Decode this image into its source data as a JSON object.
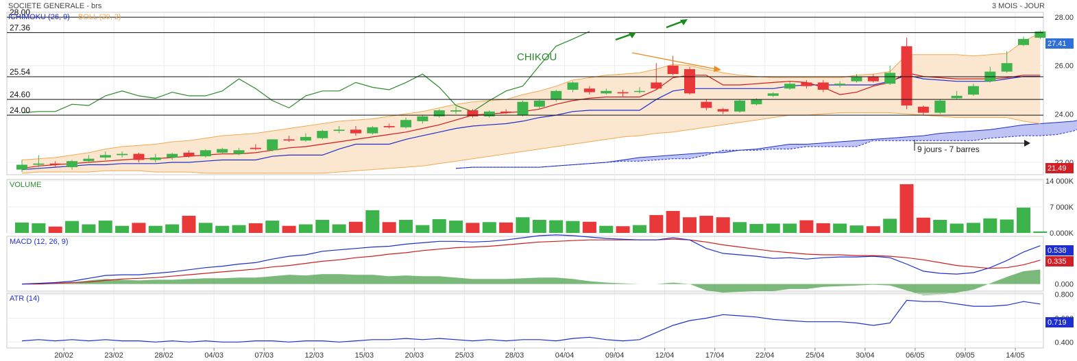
{
  "header": {
    "title": "SOCIETE GENERALE - brs",
    "period": "3 MOIS - JOUR"
  },
  "indicators": {
    "ichimoku_label": "ICHIMOKU (26, 9)",
    "boll_label": "BOLL (20, 2)",
    "chikou_label": "CHIKOU",
    "annotation": "9 jours - 7 barres"
  },
  "colors": {
    "up": "#3cb44b",
    "down": "#e8383a",
    "ichimoku_blue": "#1f2ecf",
    "tenkan_red": "#d01c1c",
    "chikou_green": "#2a8a2a",
    "boll_orange": "#f4a850",
    "boll_fill": "#fbe6cf",
    "cloud": "#aab0f0",
    "arrow_orange": "#f08a1c",
    "arrow_green": "#1a8a1a",
    "last_price_bg": "#2f6fd8",
    "low_price_bg": "#d21f26",
    "macd_badge": "#1f2ecf",
    "signal_badge": "#d21f26",
    "atr_badge": "#1f2ecf"
  },
  "levels": [
    {
      "label": "28.00",
      "value": 28.0
    },
    {
      "label": "27.36",
      "value": 27.36
    },
    {
      "label": "25.54",
      "value": 25.54
    },
    {
      "label": "24.60",
      "value": 24.6
    },
    {
      "label": "24.00",
      "value": 23.95
    }
  ],
  "badges": {
    "last_price": "27.41",
    "low_price": "21.49",
    "macd": "0.538",
    "signal": "0.335",
    "atr": "0.719"
  },
  "chart_data": {
    "type": "candlestick",
    "price_axis": {
      "min": 21.49,
      "max": 28.2,
      "ticks": [
        "28.00",
        "26.00",
        "24.00",
        "22.00"
      ]
    },
    "x_labels": [
      "20/02",
      "23/02",
      "28/02",
      "04/03",
      "07/03",
      "12/03",
      "15/03",
      "20/03",
      "25/03",
      "28/03",
      "04/04",
      "09/04",
      "12/04",
      "17/04",
      "22/04",
      "25/04",
      "30/04",
      "06/05",
      "09/05",
      "14/05"
    ],
    "x_label_index": [
      3,
      6,
      9,
      12,
      15,
      18,
      21,
      24,
      27,
      30,
      33,
      36,
      39,
      42,
      45,
      48,
      51,
      54,
      57,
      60
    ],
    "candles": [
      {
        "o": 21.7,
        "c": 21.9,
        "h": 22.1,
        "l": 21.6
      },
      {
        "o": 21.9,
        "c": 21.95,
        "h": 22.3,
        "l": 21.8
      },
      {
        "o": 21.95,
        "c": 21.9,
        "h": 22.05,
        "l": 21.8
      },
      {
        "o": 21.8,
        "c": 22.05,
        "h": 22.1,
        "l": 21.7
      },
      {
        "o": 22.05,
        "c": 22.15,
        "h": 22.3,
        "l": 22.0
      },
      {
        "o": 22.2,
        "c": 22.3,
        "h": 22.45,
        "l": 22.1
      },
      {
        "o": 22.3,
        "c": 22.35,
        "h": 22.45,
        "l": 22.2
      },
      {
        "o": 22.35,
        "c": 22.1,
        "h": 22.4,
        "l": 22.0
      },
      {
        "o": 22.1,
        "c": 22.2,
        "h": 22.35,
        "l": 22.0
      },
      {
        "o": 22.2,
        "c": 22.35,
        "h": 22.4,
        "l": 22.1
      },
      {
        "o": 22.4,
        "c": 22.25,
        "h": 22.5,
        "l": 22.2
      },
      {
        "o": 22.25,
        "c": 22.5,
        "h": 22.55,
        "l": 22.2
      },
      {
        "o": 22.4,
        "c": 22.55,
        "h": 22.6,
        "l": 22.35
      },
      {
        "o": 22.35,
        "c": 22.5,
        "h": 22.6,
        "l": 22.3
      },
      {
        "o": 22.6,
        "c": 22.55,
        "h": 22.75,
        "l": 22.5
      },
      {
        "o": 22.5,
        "c": 22.95,
        "h": 22.95,
        "l": 22.45
      },
      {
        "o": 22.95,
        "c": 22.9,
        "h": 23.1,
        "l": 22.85
      },
      {
        "o": 22.9,
        "c": 23.05,
        "h": 23.2,
        "l": 22.85
      },
      {
        "o": 23.0,
        "c": 23.3,
        "h": 23.35,
        "l": 22.95
      },
      {
        "o": 23.3,
        "c": 23.35,
        "h": 23.5,
        "l": 23.2
      },
      {
        "o": 23.35,
        "c": 23.2,
        "h": 23.5,
        "l": 23.1
      },
      {
        "o": 23.2,
        "c": 23.45,
        "h": 23.5,
        "l": 23.15
      },
      {
        "o": 23.5,
        "c": 23.45,
        "h": 23.6,
        "l": 23.4
      },
      {
        "o": 23.45,
        "c": 23.75,
        "h": 23.85,
        "l": 23.4
      },
      {
        "o": 23.7,
        "c": 23.9,
        "h": 23.95,
        "l": 23.6
      },
      {
        "o": 23.9,
        "c": 24.15,
        "h": 24.2,
        "l": 23.85
      },
      {
        "o": 24.1,
        "c": 24.15,
        "h": 24.3,
        "l": 24.0
      },
      {
        "o": 24.15,
        "c": 23.9,
        "h": 24.2,
        "l": 23.85
      },
      {
        "o": 23.9,
        "c": 24.1,
        "h": 24.15,
        "l": 23.85
      },
      {
        "o": 24.1,
        "c": 24.05,
        "h": 24.2,
        "l": 24.0
      },
      {
        "o": 23.95,
        "c": 24.5,
        "h": 24.55,
        "l": 23.9
      },
      {
        "o": 24.3,
        "c": 24.55,
        "h": 24.6,
        "l": 24.2
      },
      {
        "o": 24.6,
        "c": 24.95,
        "h": 25.0,
        "l": 24.5
      },
      {
        "o": 25.0,
        "c": 25.3,
        "h": 25.35,
        "l": 24.9
      },
      {
        "o": 25.05,
        "c": 24.9,
        "h": 25.15,
        "l": 24.8
      },
      {
        "o": 24.85,
        "c": 24.95,
        "h": 25.05,
        "l": 24.8
      },
      {
        "o": 24.9,
        "c": 24.85,
        "h": 25.0,
        "l": 24.7
      },
      {
        "o": 24.95,
        "c": 24.95,
        "h": 25.1,
        "l": 24.85
      },
      {
        "o": 25.3,
        "c": 25.05,
        "h": 26.1,
        "l": 25.0
      },
      {
        "o": 26.0,
        "c": 25.65,
        "h": 26.4,
        "l": 25.6
      },
      {
        "o": 25.85,
        "c": 24.85,
        "h": 25.95,
        "l": 24.8
      },
      {
        "o": 24.5,
        "c": 24.25,
        "h": 24.6,
        "l": 24.15
      },
      {
        "o": 24.2,
        "c": 24.1,
        "h": 24.25,
        "l": 24.0
      },
      {
        "o": 24.1,
        "c": 24.55,
        "h": 24.6,
        "l": 24.05
      },
      {
        "o": 24.4,
        "c": 24.6,
        "h": 24.65,
        "l": 24.35
      },
      {
        "o": 24.75,
        "c": 24.85,
        "h": 24.9,
        "l": 24.7
      },
      {
        "o": 25.05,
        "c": 25.25,
        "h": 25.35,
        "l": 25.0
      },
      {
        "o": 25.3,
        "c": 25.15,
        "h": 25.4,
        "l": 25.05
      },
      {
        "o": 25.3,
        "c": 25.0,
        "h": 25.4,
        "l": 24.9
      },
      {
        "o": 25.2,
        "c": 25.25,
        "h": 25.35,
        "l": 25.1
      },
      {
        "o": 25.35,
        "c": 25.55,
        "h": 25.65,
        "l": 25.3
      },
      {
        "o": 25.55,
        "c": 25.35,
        "h": 25.65,
        "l": 25.3
      },
      {
        "o": 25.25,
        "c": 25.7,
        "h": 26.0,
        "l": 25.2
      },
      {
        "o": 26.8,
        "c": 24.35,
        "h": 27.15,
        "l": 24.2
      },
      {
        "o": 24.3,
        "c": 24.05,
        "h": 24.35,
        "l": 23.95
      },
      {
        "o": 24.05,
        "c": 24.55,
        "h": 24.6,
        "l": 24.0
      },
      {
        "o": 24.65,
        "c": 24.75,
        "h": 24.95,
        "l": 24.6
      },
      {
        "o": 24.8,
        "c": 25.15,
        "h": 25.25,
        "l": 24.75
      },
      {
        "o": 25.35,
        "c": 25.75,
        "h": 25.95,
        "l": 25.3
      },
      {
        "o": 25.75,
        "c": 26.1,
        "h": 26.6,
        "l": 25.7
      },
      {
        "o": 26.85,
        "c": 27.1,
        "h": 27.2,
        "l": 26.8
      },
      {
        "o": 27.15,
        "c": 27.41,
        "h": 27.45,
        "l": 27.1
      }
    ],
    "boll_upper": [
      22.1,
      22.15,
      22.2,
      22.3,
      22.4,
      22.55,
      22.65,
      22.7,
      22.75,
      22.85,
      22.9,
      23.0,
      23.1,
      23.15,
      23.2,
      23.3,
      23.4,
      23.5,
      23.6,
      23.7,
      23.75,
      23.8,
      23.9,
      24.0,
      24.1,
      24.25,
      24.4,
      24.5,
      24.55,
      24.6,
      24.8,
      24.95,
      25.15,
      25.4,
      25.5,
      25.6,
      25.65,
      25.7,
      25.85,
      26.05,
      26.0,
      25.85,
      25.7,
      25.6,
      25.55,
      25.5,
      25.5,
      25.5,
      25.5,
      25.5,
      25.6,
      25.65,
      25.75,
      26.45,
      26.45,
      26.45,
      26.45,
      26.4,
      26.45,
      26.5,
      27.0,
      27.35
    ],
    "boll_lower": [
      21.55,
      21.6,
      21.6,
      21.6,
      21.6,
      21.65,
      21.65,
      21.65,
      21.6,
      21.6,
      21.6,
      21.55,
      21.55,
      21.55,
      21.55,
      21.55,
      21.55,
      21.55,
      21.55,
      21.6,
      21.65,
      21.7,
      21.75,
      21.8,
      21.85,
      21.95,
      22.05,
      22.15,
      22.25,
      22.35,
      22.45,
      22.55,
      22.65,
      22.75,
      22.85,
      22.95,
      23.05,
      23.1,
      23.2,
      23.25,
      23.35,
      23.45,
      23.55,
      23.65,
      23.75,
      23.85,
      23.95,
      23.95,
      24.0,
      24.05,
      24.05,
      24.05,
      24.05,
      24.0,
      23.95,
      23.9,
      23.85,
      23.85,
      23.85,
      23.85,
      23.7,
      23.6
    ],
    "tenkan": [
      21.75,
      21.85,
      21.9,
      21.95,
      22.0,
      22.05,
      22.1,
      22.15,
      22.15,
      22.2,
      22.25,
      22.3,
      22.35,
      22.35,
      22.4,
      22.5,
      22.6,
      22.65,
      22.75,
      22.85,
      22.95,
      23.05,
      23.15,
      23.25,
      23.4,
      23.55,
      23.75,
      23.95,
      24.0,
      24.05,
      24.1,
      24.2,
      24.4,
      24.55,
      24.65,
      24.7,
      24.7,
      24.7,
      25.0,
      25.5,
      25.6,
      25.6,
      25.2,
      25.2,
      25.25,
      25.3,
      25.35,
      25.3,
      25.1,
      24.8,
      24.9,
      25.15,
      25.3,
      25.7,
      25.55,
      25.5,
      25.45,
      25.45,
      25.45,
      25.5,
      25.6,
      25.6
    ],
    "kijun": [
      21.7,
      21.75,
      21.8,
      21.85,
      21.9,
      21.9,
      21.95,
      21.95,
      21.95,
      22.0,
      22.0,
      22.05,
      22.1,
      22.1,
      22.1,
      22.25,
      22.3,
      22.3,
      22.3,
      22.55,
      22.75,
      22.75,
      22.75,
      22.95,
      23.1,
      23.25,
      23.4,
      23.5,
      23.55,
      23.6,
      23.7,
      23.85,
      23.95,
      24.1,
      24.15,
      24.15,
      24.15,
      24.15,
      24.6,
      24.95,
      25.05,
      25.05,
      25.05,
      25.05,
      25.05,
      25.05,
      25.15,
      25.2,
      25.2,
      25.2,
      25.2,
      25.2,
      25.35,
      25.6,
      25.45,
      25.4,
      25.35,
      25.35,
      25.35,
      25.45,
      25.55,
      25.55
    ],
    "cloud_start": 26,
    "senkou_a": [
      21.75,
      21.8,
      21.8,
      21.8,
      21.8,
      21.8,
      21.85,
      21.9,
      21.95,
      22.0,
      22.1,
      22.2,
      22.25,
      22.3,
      22.35,
      22.4,
      22.4,
      22.5,
      22.55,
      22.65,
      22.75,
      22.75,
      22.8,
      22.85,
      22.9,
      22.95,
      23.0,
      23.05,
      23.1,
      23.2,
      23.25,
      23.3,
      23.35,
      23.45,
      23.55,
      23.6,
      23.65,
      23.7,
      23.85,
      24.05,
      24.2
    ],
    "senkou_b": [
      21.75,
      21.8,
      21.8,
      21.8,
      21.8,
      21.8,
      21.85,
      21.9,
      21.95,
      22.0,
      22.05,
      22.05,
      22.1,
      22.15,
      22.15,
      22.3,
      22.5,
      22.5,
      22.5,
      22.55,
      22.55,
      22.65,
      22.65,
      22.65,
      22.65,
      22.9,
      22.9,
      22.9,
      22.9,
      22.9,
      22.9,
      22.9,
      23.0,
      23.05,
      23.1,
      23.1,
      23.15,
      23.3,
      23.55,
      23.55,
      23.55
    ],
    "chikou": [
      24.05,
      24.1,
      24.1,
      24.4,
      24.35,
      24.75,
      24.95,
      24.75,
      24.65,
      24.9,
      24.75,
      24.75,
      24.95,
      25.45,
      25.05,
      24.55,
      24.25,
      24.75,
      24.95,
      24.95,
      25.3,
      25.1,
      25.0,
      25.3,
      25.65,
      25.1,
      24.35,
      24.1,
      24.55,
      24.95,
      25.15,
      26.0,
      26.8,
      27.1,
      27.41
    ],
    "volume_axis": {
      "max": 14000,
      "ticks": [
        "14 000K",
        "7 000K",
        "0.000K"
      ]
    },
    "volume": [
      2800,
      2600,
      1700,
      3200,
      2300,
      3300,
      1900,
      2700,
      1900,
      2300,
      4600,
      2700,
      1900,
      2100,
      2600,
      3300,
      1900,
      2300,
      3500,
      2300,
      3000,
      6100,
      2900,
      3500,
      2100,
      3700,
      3300,
      2700,
      2900,
      2800,
      4200,
      3500,
      3400,
      3200,
      3000,
      1900,
      1800,
      2100,
      4800,
      5900,
      4200,
      4600,
      4200,
      2900,
      2400,
      2500,
      2500,
      3400,
      2600,
      2500,
      2000,
      1800,
      3800,
      13100,
      4100,
      3500,
      2500,
      2700,
      3900,
      3600,
      6800,
      400
    ],
    "macd_axis": {
      "min": -0.1,
      "max": 0.67,
      "ticks": [
        "0.000"
      ]
    },
    "macd": [
      0.0,
      0.01,
      0.02,
      0.04,
      0.08,
      0.12,
      0.13,
      0.13,
      0.15,
      0.17,
      0.2,
      0.23,
      0.25,
      0.28,
      0.3,
      0.35,
      0.39,
      0.41,
      0.46,
      0.48,
      0.5,
      0.52,
      0.53,
      0.56,
      0.58,
      0.6,
      0.6,
      0.59,
      0.6,
      0.62,
      0.65,
      0.68,
      0.69,
      0.68,
      0.66,
      0.64,
      0.63,
      0.62,
      0.62,
      0.65,
      0.62,
      0.5,
      0.43,
      0.41,
      0.39,
      0.36,
      0.37,
      0.35,
      0.37,
      0.38,
      0.38,
      0.39,
      0.37,
      0.28,
      0.18,
      0.15,
      0.14,
      0.16,
      0.23,
      0.33,
      0.45,
      0.538
    ],
    "signal": [
      0.0,
      0.0,
      0.01,
      0.02,
      0.03,
      0.05,
      0.07,
      0.08,
      0.09,
      0.11,
      0.13,
      0.15,
      0.17,
      0.19,
      0.21,
      0.24,
      0.26,
      0.29,
      0.32,
      0.34,
      0.37,
      0.39,
      0.42,
      0.44,
      0.47,
      0.49,
      0.51,
      0.52,
      0.53,
      0.55,
      0.57,
      0.59,
      0.6,
      0.61,
      0.62,
      0.62,
      0.62,
      0.62,
      0.62,
      0.63,
      0.62,
      0.59,
      0.55,
      0.52,
      0.49,
      0.46,
      0.44,
      0.42,
      0.41,
      0.41,
      0.4,
      0.4,
      0.39,
      0.37,
      0.34,
      0.3,
      0.26,
      0.24,
      0.22,
      0.23,
      0.27,
      0.335
    ],
    "atr_axis": {
      "min": 0.35,
      "max": 0.81,
      "ticks": [
        "0.800",
        "0.600",
        "0.400"
      ]
    },
    "atr": [
      0.41,
      0.42,
      0.41,
      0.42,
      0.41,
      0.42,
      0.41,
      0.41,
      0.4,
      0.41,
      0.4,
      0.41,
      0.4,
      0.4,
      0.41,
      0.41,
      0.4,
      0.41,
      0.41,
      0.4,
      0.41,
      0.42,
      0.42,
      0.43,
      0.42,
      0.43,
      0.42,
      0.41,
      0.42,
      0.41,
      0.42,
      0.42,
      0.41,
      0.43,
      0.44,
      0.42,
      0.41,
      0.42,
      0.48,
      0.54,
      0.58,
      0.6,
      0.63,
      0.62,
      0.61,
      0.59,
      0.58,
      0.57,
      0.57,
      0.57,
      0.56,
      0.54,
      0.56,
      0.75,
      0.74,
      0.74,
      0.72,
      0.7,
      0.7,
      0.71,
      0.74,
      0.719
    ],
    "panel_titles": {
      "volume": "VOLUME",
      "macd": "MACD (12, 26, 9)",
      "atr": "ATR (14)"
    }
  }
}
